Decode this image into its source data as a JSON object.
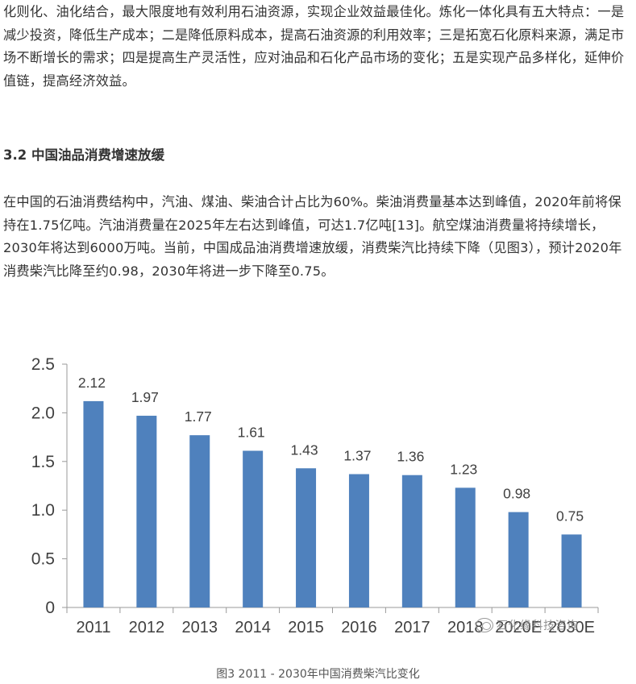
{
  "article": {
    "para1": "化则化、油化结合，最大限度地有效利用石油资源，实现企业效益最佳化。炼化一体化具有五大特点：一是减少投资，降低生产成本；二是降低原料成本，提高石油资源的利用效率；三是拓宽石化原料来源，满足市场不断增长的需求；四是提高生产灵活性，应对油品和石化产品市场的变化；五是实现产品多样化，延伸价值链，提高经济效益。",
    "heading": "3.2 中国油品消费增速放缓",
    "para2": "在中国的石油消费结构中，汽油、煤油、柴油合计占比为60%。柴油消费量基本达到峰值，2020年前将保持在1.75亿吨。汽油消费量在2025年左右达到峰值，可达1.7亿吨[13]。航空煤油消费量将持续增长，2030年将达到6000万吨。当前，中国成品油消费增速放缓，消费柴汽比持续下降（见图3），预计2020年消费柴汽比降至约0.98，2030年将进一步下降至0.75。",
    "caption": "图3 2011 - 2030年中国消费柴汽比变化",
    "watermark": "石化缘科技咨询"
  },
  "chart_data": {
    "type": "bar",
    "categories": [
      "2011",
      "2012",
      "2013",
      "2014",
      "2015",
      "2016",
      "2017",
      "2018",
      "2020E",
      "2030E"
    ],
    "values": [
      2.12,
      1.97,
      1.77,
      1.61,
      1.43,
      1.37,
      1.36,
      1.23,
      0.98,
      0.75
    ],
    "value_labels": [
      "2.12",
      "1.97",
      "1.77",
      "1.61",
      "1.43",
      "1.37",
      "1.36",
      "1.23",
      "0.98",
      "0.75"
    ],
    "yticks": [
      "0",
      "0.5",
      "1.0",
      "1.5",
      "2.0",
      "2.5"
    ],
    "ylim": [
      0,
      2.5
    ],
    "title": "",
    "xlabel": "",
    "ylabel": "",
    "grid": false,
    "bar_color": "#4f81bd",
    "axis_color": "#9a9a9a"
  }
}
